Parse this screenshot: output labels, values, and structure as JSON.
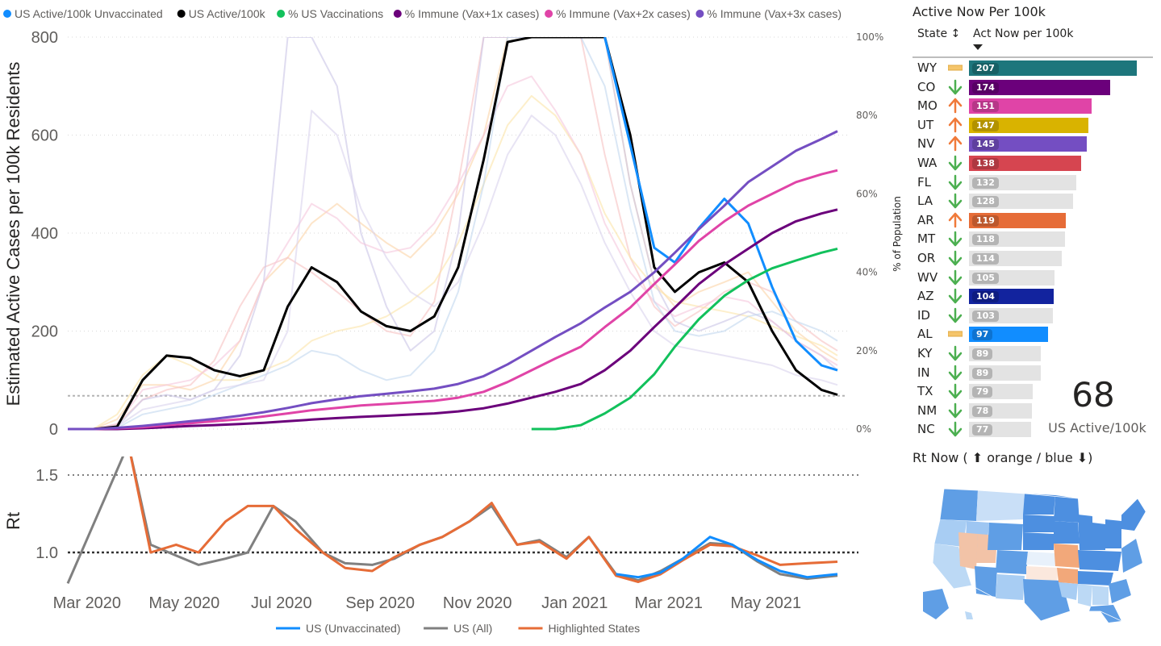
{
  "legend_top": [
    {
      "label": "US Active/100k Unvaccinated",
      "color": "#118dff"
    },
    {
      "label": "US Active/100k",
      "color": "#000000"
    },
    {
      "label": "% US Vaccinations",
      "color": "#12c15c"
    },
    {
      "label": "% Immune (Vax+1x cases)",
      "color": "#6b007b"
    },
    {
      "label": "% Immune (Vax+2x cases)",
      "color": "#e044a7"
    },
    {
      "label": "% Immune (Vax+3x cases)",
      "color": "#744ec2"
    }
  ],
  "legend_bottom": [
    {
      "label": "US (Unvaccinated)",
      "color": "#118dff"
    },
    {
      "label": "US (All)",
      "color": "#808080"
    },
    {
      "label": "Highlighted States",
      "color": "#e66c37"
    }
  ],
  "table": {
    "title": "Active Now Per 100k",
    "col_state": "State",
    "col_sort_icon": "sort-updown-icon",
    "col_value": "Act Now per 100k",
    "rows": [
      {
        "state": "WY",
        "value": 207,
        "trend": "flat",
        "color": "#1d767c"
      },
      {
        "state": "CO",
        "value": 174,
        "trend": "down",
        "color": "#6b007b"
      },
      {
        "state": "MO",
        "value": 151,
        "trend": "up",
        "color": "#e044a7"
      },
      {
        "state": "UT",
        "value": 147,
        "trend": "up",
        "color": "#d9b300"
      },
      {
        "state": "NV",
        "value": 145,
        "trend": "up",
        "color": "#744ec2"
      },
      {
        "state": "WA",
        "value": 138,
        "trend": "down",
        "color": "#d64550"
      },
      {
        "state": "FL",
        "value": 132,
        "trend": "down",
        "color": ""
      },
      {
        "state": "LA",
        "value": 128,
        "trend": "down",
        "color": ""
      },
      {
        "state": "AR",
        "value": 119,
        "trend": "up",
        "color": "#e66c37"
      },
      {
        "state": "MT",
        "value": 118,
        "trend": "down",
        "color": ""
      },
      {
        "state": "OR",
        "value": 114,
        "trend": "down",
        "color": ""
      },
      {
        "state": "WV",
        "value": 105,
        "trend": "down",
        "color": ""
      },
      {
        "state": "AZ",
        "value": 104,
        "trend": "down",
        "color": "#12239e"
      },
      {
        "state": "ID",
        "value": 103,
        "trend": "down",
        "color": ""
      },
      {
        "state": "AL",
        "value": 97,
        "trend": "flat",
        "color": "#118dff"
      },
      {
        "state": "KY",
        "value": 89,
        "trend": "down",
        "color": ""
      },
      {
        "state": "IN",
        "value": 89,
        "trend": "down",
        "color": ""
      },
      {
        "state": "TX",
        "value": 79,
        "trend": "down",
        "color": ""
      },
      {
        "state": "NM",
        "value": 78,
        "trend": "down",
        "color": ""
      },
      {
        "state": "NC",
        "value": 77,
        "trend": "down",
        "color": ""
      }
    ]
  },
  "kpi": {
    "value": "68",
    "caption": "US Active/100k"
  },
  "rt_now_title": "Rt Now ( ⬆ orange / blue ⬇)",
  "map_icon": "us-state-map",
  "chart_data": [
    {
      "type": "line",
      "ylabel": "Estimated Active Cases per 100k Residents",
      "y2label": "% of Population",
      "ylim": [
        0,
        800
      ],
      "y2lim": [
        0,
        100
      ],
      "yticks": [
        "0",
        "200",
        "400",
        "600",
        "800"
      ],
      "y2ticks": [
        "0%",
        "20%",
        "40%",
        "60%",
        "80%",
        "100%"
      ],
      "x_ticks": [
        "Mar 2020",
        "May 2020",
        "Jul 2020",
        "Sep 2020",
        "Nov 2020",
        "Jan 2021",
        "Mar 2021",
        "May 2021"
      ],
      "x": [
        "2020-02-23",
        "2020-03-10",
        "2020-03-25",
        "2020-04-10",
        "2020-04-25",
        "2020-05-10",
        "2020-05-25",
        "2020-06-10",
        "2020-06-25",
        "2020-07-10",
        "2020-07-25",
        "2020-08-10",
        "2020-08-25",
        "2020-09-10",
        "2020-09-25",
        "2020-10-10",
        "2020-10-25",
        "2020-11-10",
        "2020-11-25",
        "2020-12-10",
        "2020-12-25",
        "2021-01-10",
        "2021-01-25",
        "2021-02-10",
        "2021-02-25",
        "2021-03-10",
        "2021-03-25",
        "2021-04-10",
        "2021-04-25",
        "2021-05-10",
        "2021-05-25",
        "2021-06-10",
        "2021-06-20"
      ],
      "series": [
        {
          "name": "US Active/100k",
          "axis": "left",
          "values": [
            0,
            0,
            5,
            100,
            150,
            145,
            120,
            108,
            120,
            250,
            330,
            300,
            240,
            210,
            200,
            230,
            330,
            550,
            790,
            800,
            800,
            800,
            800,
            600,
            330,
            280,
            320,
            340,
            300,
            200,
            120,
            80,
            70
          ]
        },
        {
          "name": "US Active/100k Unvaccinated",
          "axis": "left",
          "values": [
            null,
            null,
            null,
            null,
            null,
            null,
            null,
            null,
            null,
            null,
            null,
            null,
            null,
            null,
            null,
            null,
            null,
            null,
            null,
            null,
            null,
            null,
            800,
            580,
            370,
            340,
            410,
            470,
            420,
            290,
            180,
            130,
            120
          ]
        },
        {
          "name": "% US Vaccinations",
          "axis": "right",
          "values": [
            null,
            null,
            null,
            null,
            null,
            null,
            null,
            null,
            null,
            null,
            null,
            null,
            null,
            null,
            null,
            null,
            null,
            null,
            null,
            0,
            0,
            1,
            4,
            8,
            14,
            21,
            28,
            34,
            38,
            41,
            43,
            45,
            46
          ]
        },
        {
          "name": "% Immune (Vax+1x cases)",
          "axis": "right",
          "values": [
            0,
            0,
            0,
            0.2,
            0.5,
            0.8,
            1,
            1.3,
            1.6,
            2,
            2.4,
            2.8,
            3.1,
            3.4,
            3.7,
            4,
            4.5,
            5.3,
            6.5,
            8,
            9.5,
            11.5,
            15,
            20,
            26,
            31,
            37,
            42,
            46,
            50,
            53,
            55,
            56
          ]
        },
        {
          "name": "% Immune (Vax+2x cases)",
          "axis": "right",
          "values": [
            0,
            0,
            0.2,
            0.5,
            1,
            1.5,
            2,
            2.5,
            3.2,
            4,
            4.8,
            5.4,
            6,
            6.4,
            6.8,
            7.2,
            8,
            9.5,
            12,
            15,
            18,
            21,
            26,
            31,
            37,
            42,
            48,
            53,
            57,
            60,
            63,
            65,
            66
          ]
        },
        {
          "name": "% Immune (Vax+3x cases)",
          "axis": "right",
          "values": [
            0,
            0,
            0.3,
            0.8,
            1.4,
            2,
            2.6,
            3.4,
            4.3,
            5.4,
            6.6,
            7.6,
            8.4,
            9,
            9.6,
            10.3,
            11.5,
            13.5,
            16.5,
            20,
            23.5,
            27,
            31,
            35,
            40,
            45,
            51,
            57,
            63,
            67,
            71,
            74,
            76
          ]
        },
        {
          "name": "state-1",
          "axis": "left",
          "values": [
            0,
            0,
            20,
            90,
            90,
            80,
            100,
            180,
            300,
            350,
            420,
            460,
            420,
            380,
            350,
            400,
            480,
            600,
            800,
            800,
            800,
            800,
            800,
            500,
            300,
            250,
            280,
            300,
            320,
            260,
            200,
            160,
            140
          ]
        },
        {
          "name": "state-2",
          "axis": "left",
          "values": [
            0,
            0,
            10,
            60,
            80,
            90,
            140,
            250,
            330,
            350,
            320,
            280,
            240,
            200,
            190,
            260,
            500,
            800,
            800,
            800,
            800,
            800,
            560,
            350,
            250,
            210,
            240,
            280,
            300,
            280,
            220,
            180,
            160
          ]
        },
        {
          "name": "state-3",
          "axis": "left",
          "values": [
            0,
            0,
            30,
            110,
            150,
            130,
            100,
            100,
            120,
            140,
            180,
            200,
            210,
            230,
            260,
            300,
            380,
            500,
            620,
            680,
            640,
            560,
            440,
            350,
            290,
            260,
            250,
            240,
            230,
            210,
            190,
            170,
            150
          ]
        },
        {
          "name": "state-4",
          "axis": "left",
          "values": [
            0,
            0,
            5,
            60,
            70,
            60,
            80,
            150,
            300,
            800,
            800,
            700,
            400,
            250,
            160,
            200,
            400,
            800,
            800,
            800,
            800,
            800,
            800,
            500,
            300,
            220,
            200,
            220,
            240,
            220,
            180,
            150,
            120
          ]
        },
        {
          "name": "state-5",
          "axis": "left",
          "values": [
            0,
            0,
            10,
            80,
            90,
            100,
            130,
            180,
            300,
            380,
            460,
            430,
            380,
            360,
            370,
            420,
            500,
            600,
            700,
            720,
            650,
            560,
            420,
            320,
            260,
            230,
            250,
            270,
            260,
            220,
            180,
            150,
            130
          ]
        },
        {
          "name": "state-6",
          "axis": "left",
          "values": [
            0,
            0,
            2,
            30,
            40,
            50,
            70,
            90,
            110,
            130,
            160,
            150,
            120,
            100,
            110,
            160,
            280,
            500,
            800,
            800,
            800,
            800,
            700,
            450,
            260,
            200,
            190,
            200,
            230,
            240,
            220,
            200,
            180
          ]
        },
        {
          "name": "state-7",
          "axis": "left",
          "values": [
            0,
            0,
            5,
            40,
            50,
            60,
            80,
            90,
            100,
            200,
            650,
            600,
            450,
            350,
            280,
            250,
            300,
            420,
            560,
            640,
            600,
            500,
            380,
            280,
            200,
            170,
            160,
            150,
            140,
            130,
            110,
            100,
            90
          ]
        }
      ]
    },
    {
      "type": "line",
      "ylabel": "Rt",
      "ylim": [
        0.75,
        1.62
      ],
      "yticks": [
        "1.0",
        "1.5"
      ],
      "reference_lines": [
        1.0,
        1.5
      ],
      "x_ticks": [
        "Mar 2020",
        "May 2020",
        "Jul 2020",
        "Sep 2020",
        "Nov 2020",
        "Jan 2021",
        "Mar 2021",
        "May 2021"
      ],
      "x": [
        "2020-02-23",
        "2020-04-01",
        "2020-04-15",
        "2020-05-01",
        "2020-05-15",
        "2020-06-01",
        "2020-06-15",
        "2020-07-01",
        "2020-07-15",
        "2020-08-01",
        "2020-08-15",
        "2020-09-01",
        "2020-09-15",
        "2020-10-01",
        "2020-10-15",
        "2020-11-01",
        "2020-11-15",
        "2020-12-01",
        "2020-12-15",
        "2021-01-01",
        "2021-01-15",
        "2021-02-01",
        "2021-02-15",
        "2021-03-01",
        "2021-03-15",
        "2021-04-01",
        "2021-04-15",
        "2021-05-01",
        "2021-05-15",
        "2021-06-01",
        "2021-06-20"
      ],
      "series": [
        {
          "name": "US (Unvaccinated)",
          "values": [
            null,
            null,
            null,
            null,
            null,
            null,
            null,
            null,
            null,
            null,
            null,
            null,
            null,
            null,
            null,
            null,
            null,
            null,
            null,
            null,
            null,
            0.86,
            0.84,
            0.87,
            0.96,
            1.1,
            1.05,
            0.95,
            0.88,
            0.84,
            0.86
          ]
        },
        {
          "name": "US (All)",
          "values": [
            0.8,
            1.7,
            1.05,
            0.98,
            0.92,
            0.96,
            1.0,
            1.3,
            1.2,
            1.0,
            0.93,
            0.92,
            0.96,
            1.05,
            1.1,
            1.2,
            1.3,
            1.05,
            1.08,
            0.97,
            1.1,
            0.86,
            0.82,
            0.88,
            0.96,
            1.06,
            1.05,
            0.94,
            0.86,
            0.83,
            0.85
          ]
        },
        {
          "name": "Highlighted States",
          "values": [
            null,
            1.7,
            1.0,
            1.05,
            1.0,
            1.2,
            1.3,
            1.3,
            1.15,
            1.0,
            0.9,
            0.88,
            0.97,
            1.05,
            1.1,
            1.2,
            1.32,
            1.05,
            1.07,
            0.96,
            1.1,
            0.85,
            0.81,
            0.86,
            0.95,
            1.05,
            1.04,
            0.98,
            0.92,
            0.93,
            0.94
          ]
        }
      ]
    }
  ]
}
